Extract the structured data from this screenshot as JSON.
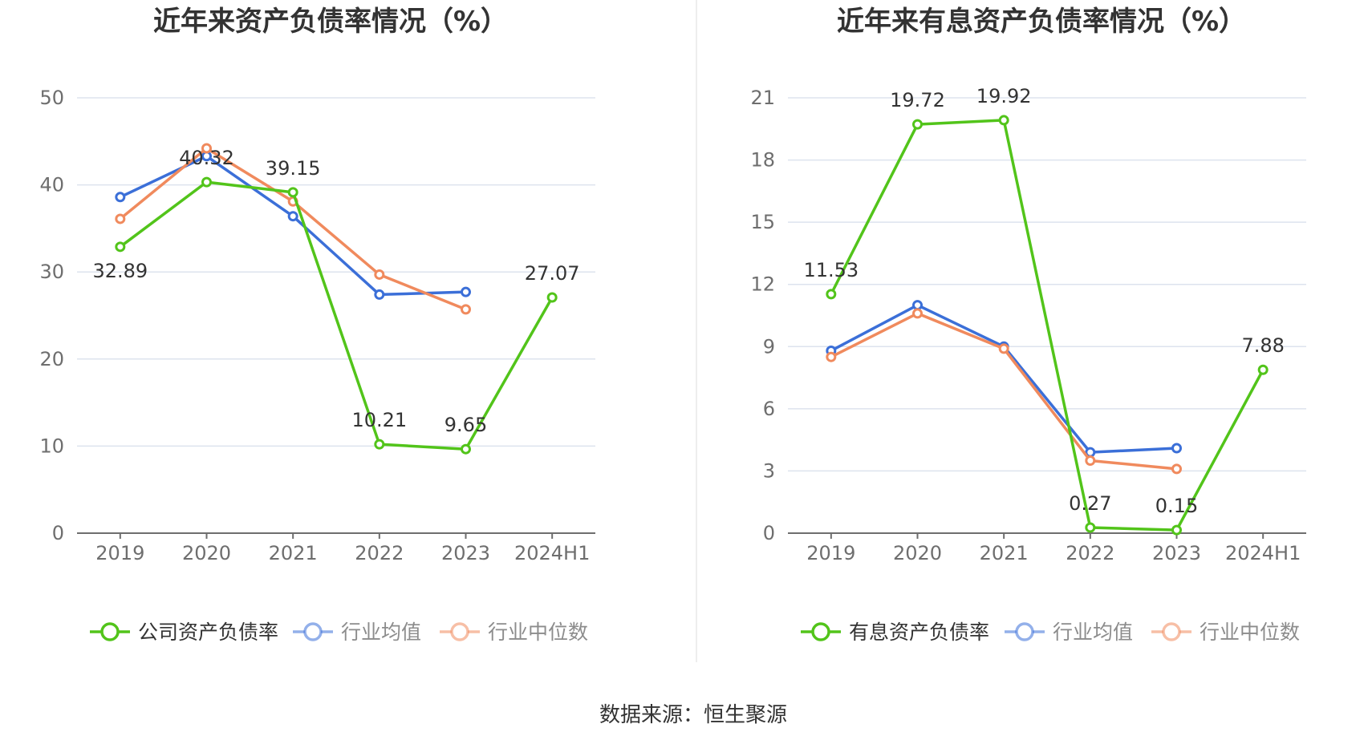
{
  "source_label": "数据来源：恒生聚源",
  "colors": {
    "company": "#52c41a",
    "avg": "#3b6fd8",
    "median": "#f08a5d",
    "grid": "#dde3ee",
    "axis": "#6e6e6e"
  },
  "chart_data": [
    {
      "type": "line",
      "title": "近年来资产负债率情况（%）",
      "categories": [
        "2019",
        "2020",
        "2021",
        "2022",
        "2023",
        "2024H1"
      ],
      "ylim": [
        0,
        50
      ],
      "yticks": [
        0,
        10,
        20,
        30,
        40,
        50
      ],
      "series": [
        {
          "name": "公司资产负债率",
          "values": [
            32.89,
            40.32,
            39.15,
            10.21,
            9.65,
            27.07
          ],
          "labels": [
            "32.89",
            "40.32",
            "39.15",
            "10.21",
            "9.65",
            "27.07"
          ]
        },
        {
          "name": "行业均值",
          "values": [
            38.6,
            43.3,
            36.4,
            27.4,
            27.7,
            null
          ]
        },
        {
          "name": "行业中位数",
          "values": [
            36.1,
            44.2,
            38.1,
            29.7,
            25.7,
            null
          ]
        }
      ]
    },
    {
      "type": "line",
      "title": "近年来有息资产负债率情况（%）",
      "categories": [
        "2019",
        "2020",
        "2021",
        "2022",
        "2023",
        "2024H1"
      ],
      "ylim": [
        0,
        21
      ],
      "yticks": [
        0,
        3,
        6,
        9,
        12,
        15,
        18,
        21
      ],
      "series": [
        {
          "name": "有息资产负债率",
          "values": [
            11.53,
            19.72,
            19.92,
            0.27,
            0.15,
            7.88
          ],
          "labels": [
            "11.53",
            "19.72",
            "19.92",
            "0.27",
            "0.15",
            "7.88"
          ]
        },
        {
          "name": "行业均值",
          "values": [
            8.8,
            11.0,
            9.0,
            3.9,
            4.1,
            null
          ]
        },
        {
          "name": "行业中位数",
          "values": [
            8.5,
            10.6,
            8.9,
            3.5,
            3.1,
            null
          ]
        }
      ]
    }
  ]
}
